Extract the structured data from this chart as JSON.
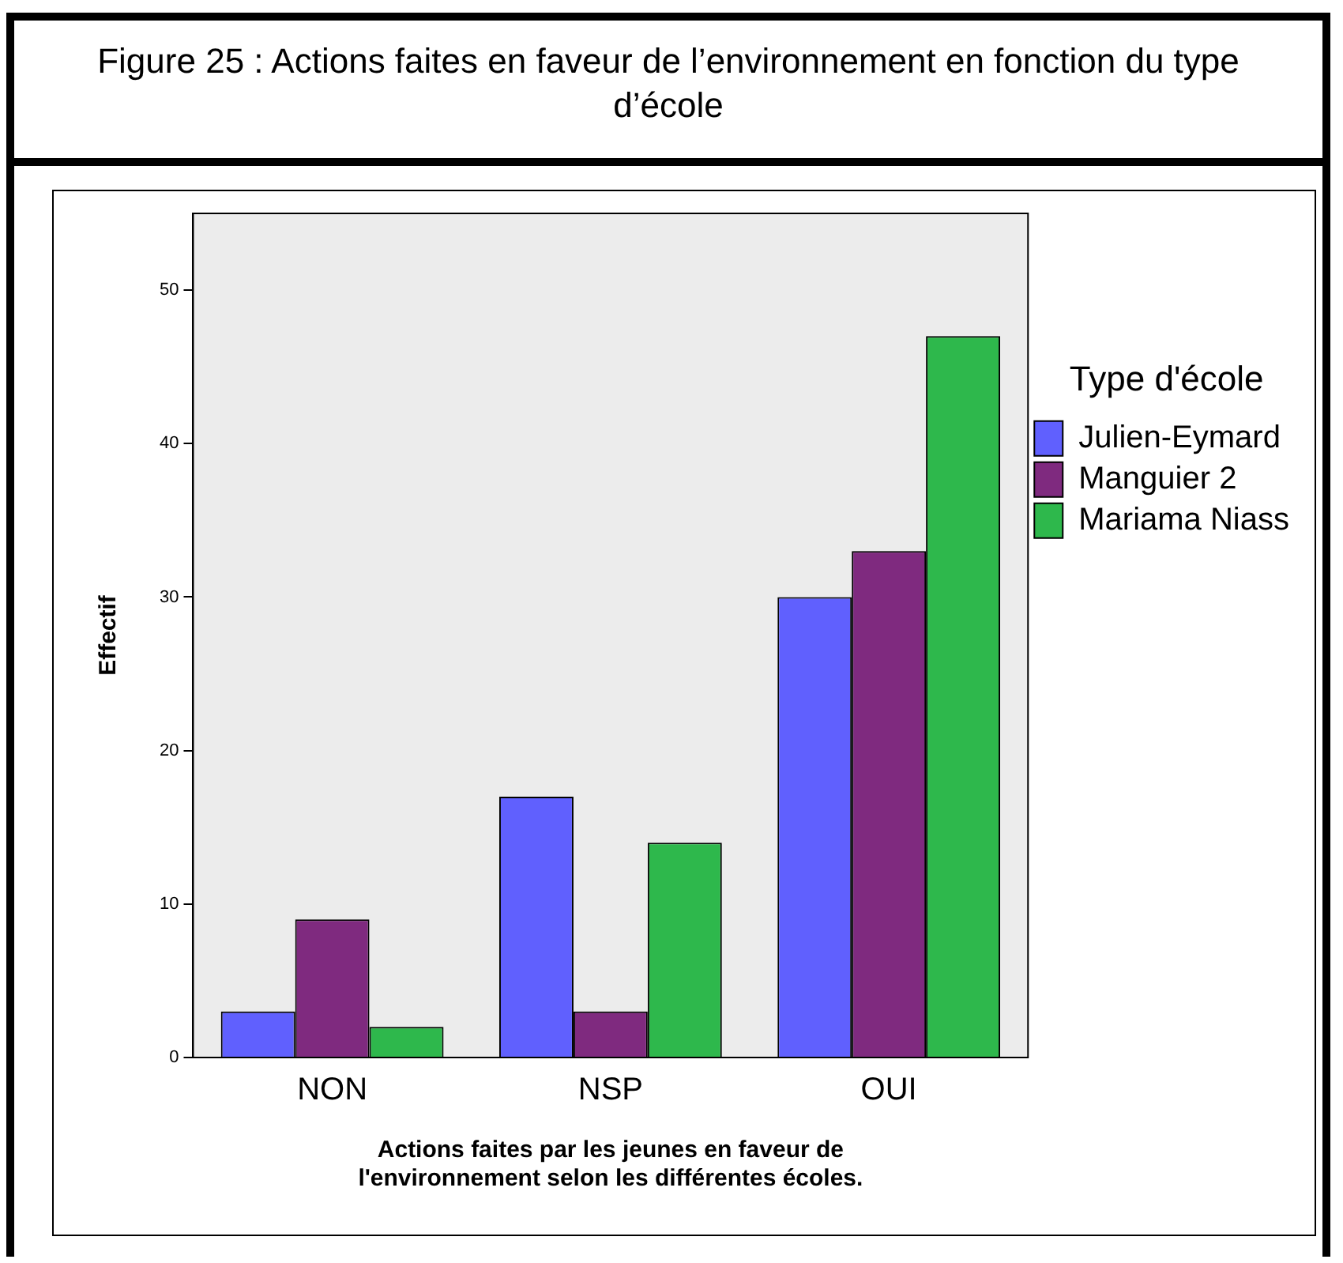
{
  "chart_data": {
    "type": "bar",
    "title": "Figure 25 : Actions faites en faveur de l’environnement en fonction du type d’école",
    "xlabel": "Actions faites par les jeunes en faveur de\nl'environnement selon les différentes écoles.",
    "ylabel": "Effectif",
    "legend_title": "Type d'école",
    "categories": [
      "NON",
      "NSP",
      "OUI"
    ],
    "series": [
      {
        "name": "Julien-Eymard",
        "color": "#6060fe",
        "values": [
          3,
          17,
          30
        ]
      },
      {
        "name": "Manguier 2",
        "color": "#7f2a7f",
        "values": [
          9,
          3,
          33
        ]
      },
      {
        "name": "Mariama Niass",
        "color": "#2eb84c",
        "values": [
          2,
          14,
          47
        ]
      }
    ],
    "ylim": [
      0,
      55
    ],
    "yticks": [
      0,
      10,
      20,
      30,
      40,
      50
    ],
    "grid": false,
    "legend": "right"
  }
}
